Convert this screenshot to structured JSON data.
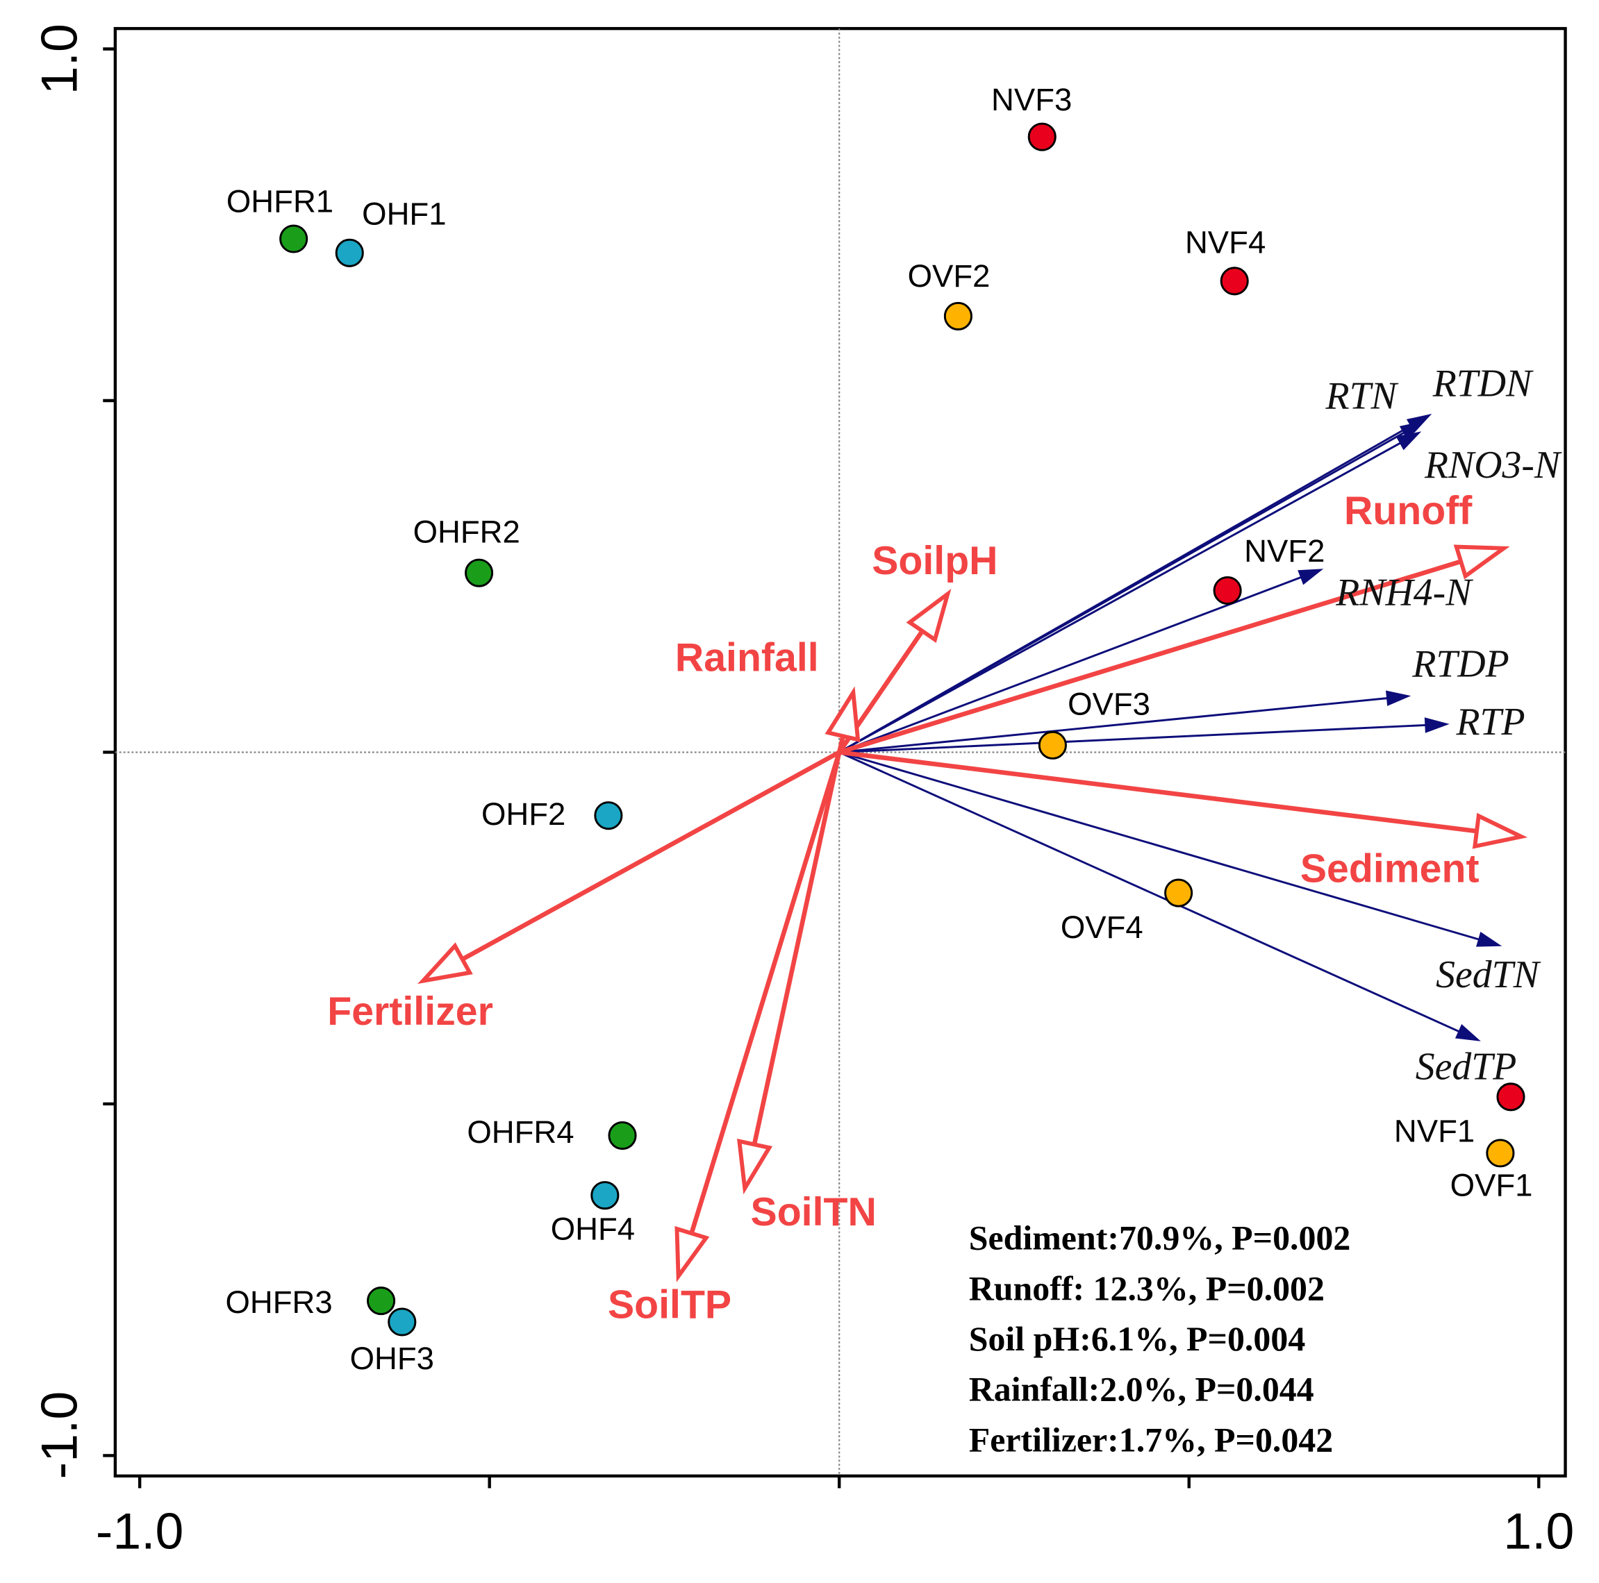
{
  "chart_data": {
    "type": "biplot",
    "xlim": [
      -1.035,
      1.038
    ],
    "ylim": [
      -1.029,
      1.029
    ],
    "xticks": [
      {
        "value": -1.0,
        "label": "-1.0"
      },
      -0.5,
      0,
      0.5,
      {
        "value": 1.0,
        "label": "1.0"
      }
    ],
    "yticks": [
      {
        "value": -1.0,
        "label": "-1.0"
      },
      -0.5,
      0,
      0.5,
      {
        "value": 1.0,
        "label": "1.0"
      }
    ],
    "points": [
      {
        "label": "OHFR1",
        "x": -0.78,
        "y": 0.73,
        "color": "#1a9e1a"
      },
      {
        "label": "OHF1",
        "x": -0.7,
        "y": 0.71,
        "color": "#1aa6c4"
      },
      {
        "label": "NVF3",
        "x": 0.29,
        "y": 0.875,
        "color": "#e8001c"
      },
      {
        "label": "NVF4",
        "x": 0.565,
        "y": 0.67,
        "color": "#e8001c"
      },
      {
        "label": "OVF2",
        "x": 0.17,
        "y": 0.62,
        "color": "#ffb300"
      },
      {
        "label": "OHFR2",
        "x": -0.515,
        "y": 0.255,
        "color": "#1a9e1a"
      },
      {
        "label": "NVF2",
        "x": 0.555,
        "y": 0.23,
        "color": "#e8001c"
      },
      {
        "label": "OVF3",
        "x": 0.305,
        "y": 0.01,
        "color": "#ffb300"
      },
      {
        "label": "OHF2",
        "x": -0.33,
        "y": -0.09,
        "color": "#1aa6c4"
      },
      {
        "label": "OVF4",
        "x": 0.485,
        "y": -0.2,
        "color": "#ffb300"
      },
      {
        "label": "NVF1",
        "x": 0.96,
        "y": -0.49,
        "color": "#e8001c"
      },
      {
        "label": "OVF1",
        "x": 0.945,
        "y": -0.57,
        "color": "#ffb300"
      },
      {
        "label": "OHFR4",
        "x": -0.31,
        "y": -0.545,
        "color": "#1a9e1a"
      },
      {
        "label": "OHF4",
        "x": -0.335,
        "y": -0.63,
        "color": "#1aa6c4"
      },
      {
        "label": "OHFR3",
        "x": -0.655,
        "y": -0.78,
        "color": "#1a9e1a"
      },
      {
        "label": "OHF3",
        "x": -0.625,
        "y": -0.81,
        "color": "#1aa6c4"
      }
    ],
    "response_vectors": [
      {
        "label": "RTN",
        "x": 0.835,
        "y": 0.47
      },
      {
        "label": "RTDN",
        "x": 0.845,
        "y": 0.48
      },
      {
        "label": "RNO3-N",
        "x": 0.83,
        "y": 0.455
      },
      {
        "label": "RNH4-N",
        "x": 0.69,
        "y": 0.26
      },
      {
        "label": "RTDP",
        "x": 0.815,
        "y": 0.08
      },
      {
        "label": "RTP",
        "x": 0.87,
        "y": 0.04
      },
      {
        "label": "SedTN",
        "x": 0.945,
        "y": -0.275
      },
      {
        "label": "SedTP",
        "x": 0.915,
        "y": -0.41
      }
    ],
    "response_color": "#0d0d7a",
    "explanatory_vectors": [
      {
        "label": "Runoff",
        "x": 0.95,
        "y": 0.29
      },
      {
        "label": "Sediment",
        "x": 0.975,
        "y": -0.12
      },
      {
        "label": "SoilpH",
        "x": 0.155,
        "y": 0.225
      },
      {
        "label": "Rainfall",
        "x": 0.02,
        "y": 0.085
      },
      {
        "label": "Fertilizer",
        "x": -0.595,
        "y": -0.325
      },
      {
        "label": "SoilTN",
        "x": -0.135,
        "y": -0.62
      },
      {
        "label": "SoilTP",
        "x": -0.23,
        "y": -0.745
      }
    ],
    "explanatory_color": "#f24444",
    "annotations": [
      "Sediment:70.9%, P=0.002",
      "Runoff: 12.3%, P=0.002",
      "Soil pH:6.1%, P=0.004",
      "Rainfall:2.0%, P=0.044",
      "Fertilizer:1.7%, P=0.042"
    ]
  }
}
